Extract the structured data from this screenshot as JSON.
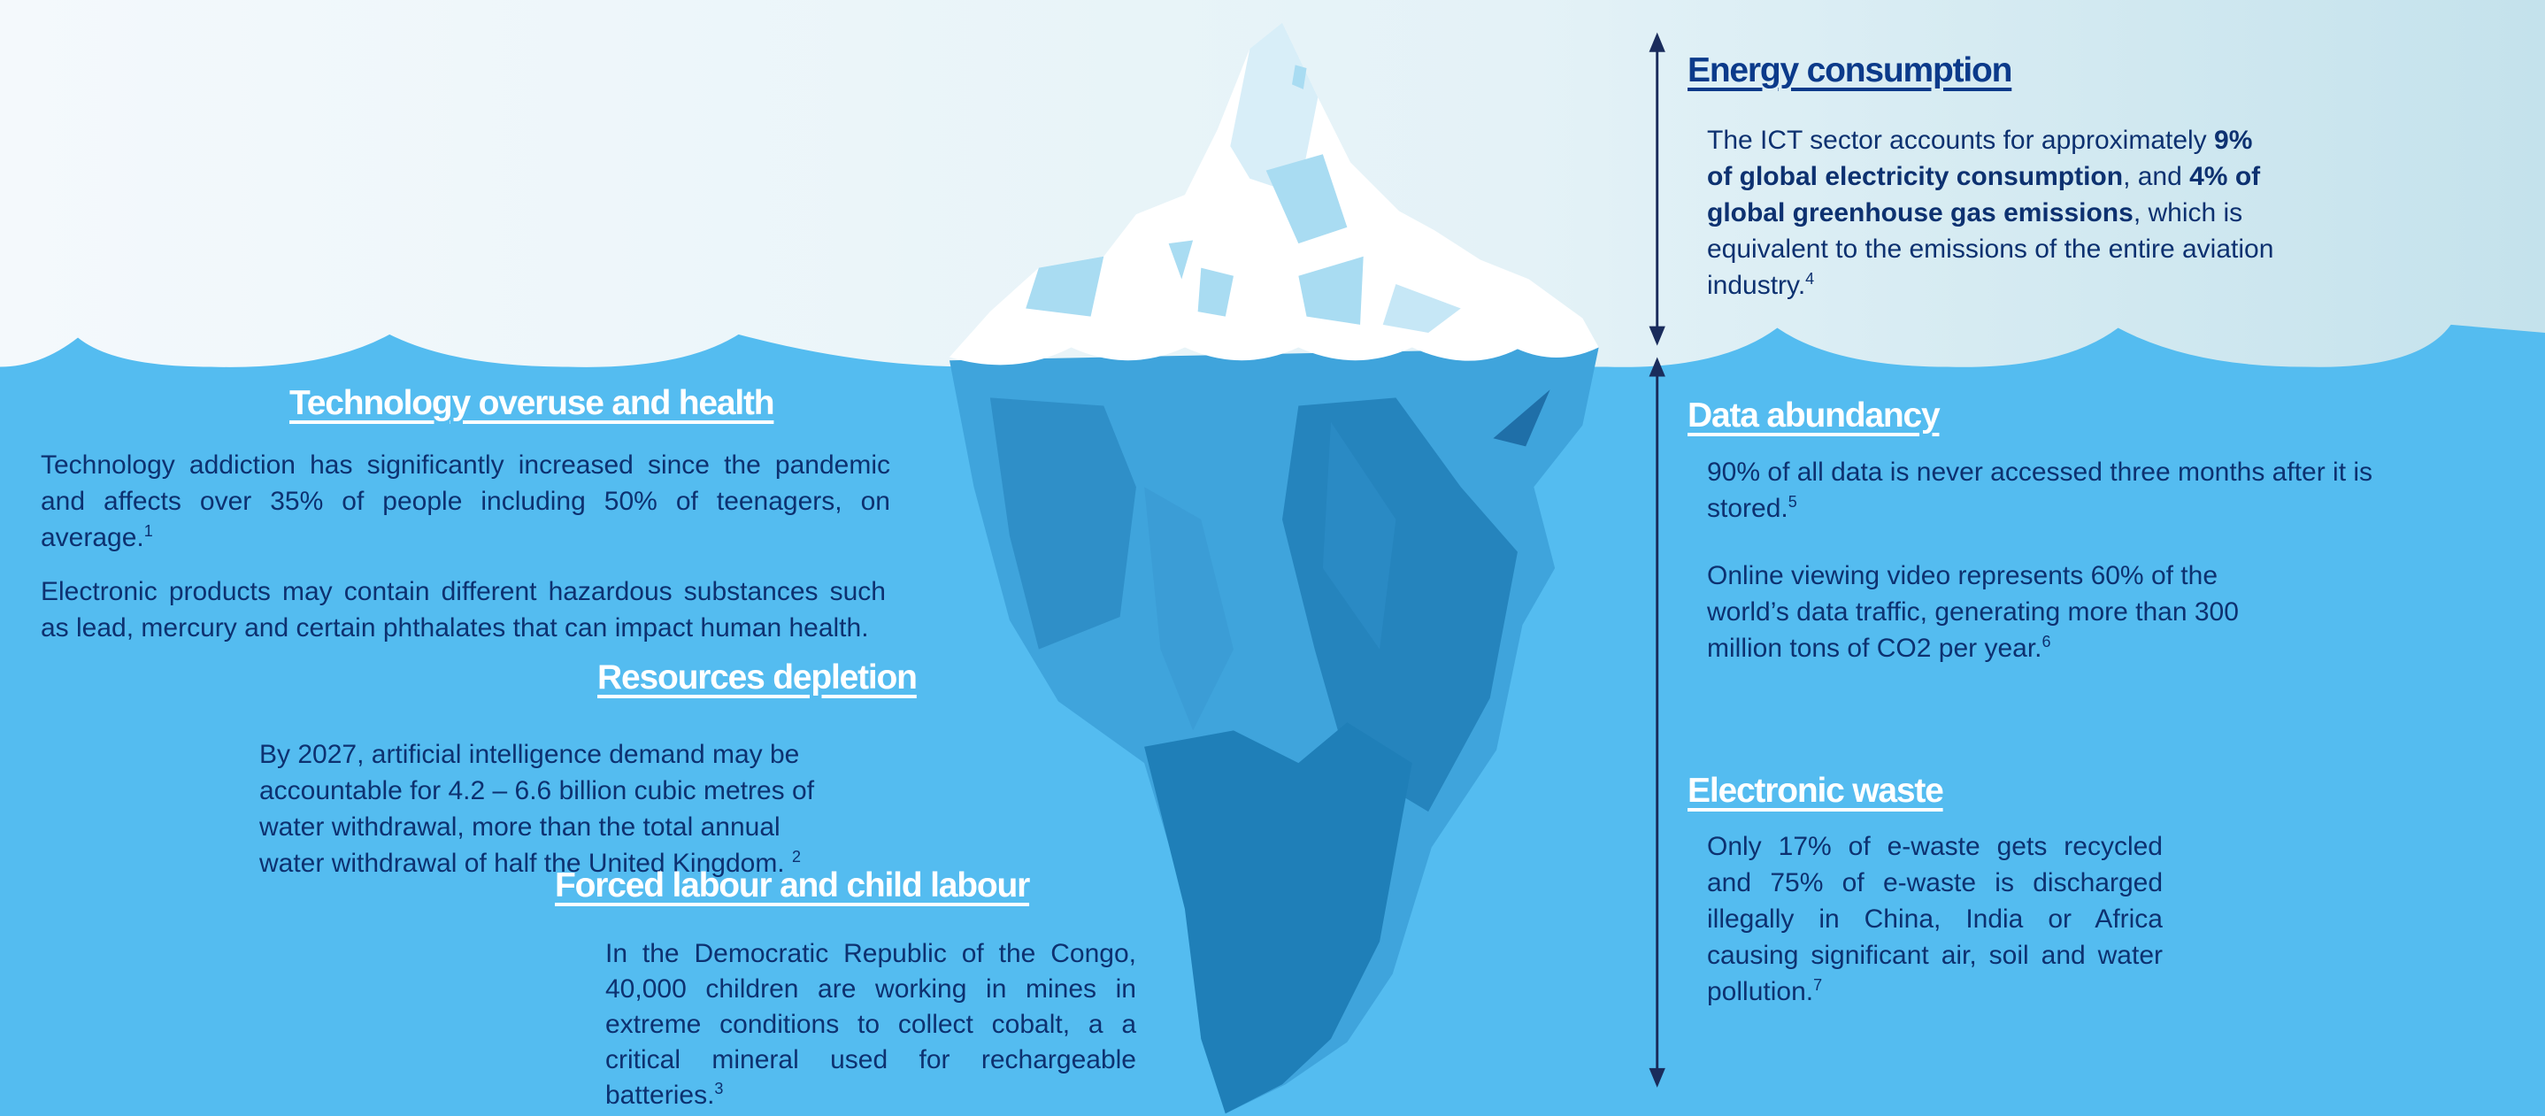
{
  "colors": {
    "water": "#54bcf0",
    "sky_left": "#f4f9fc",
    "sky_right": "#c4e2ec",
    "text_dark": "#0d3170",
    "heading_dark": "#0b3a8a",
    "arrow": "#1a2c5c"
  },
  "left": {
    "tech": {
      "title": "Technology overuse and health",
      "p1": "Technology addiction has significantly increased since the pandemic and affects over 35% of people including 50% of teenagers, on average.",
      "p1_ref": "1",
      "p2": "Electronic products may contain different hazardous substances such as lead, mercury and certain phthalates that can impact human health."
    },
    "resources": {
      "title": "Resources depletion",
      "p1": "By 2027, artificial intelligence demand may be accountable for 4.2 – 6.6 billion cubic metres of water withdrawal, more than the total annual water withdrawal of half the United Kingdom.",
      "p1_ref": "2"
    },
    "labour": {
      "title": "Forced labour and child labour",
      "p1": "In the Democratic Republic of the Congo, 40,000 children are working in mines in extreme conditions to collect cobalt, a a critical mineral used for rechargeable batteries.",
      "p1_ref": "3"
    }
  },
  "right": {
    "energy": {
      "title": "Energy consumption",
      "t1": "The ICT sector accounts for approximately ",
      "b1": "9% of global electricity consumption",
      "t2": ", and ",
      "b2": "4% of global greenhouse gas emissions",
      "t3": ", which is equivalent to the emissions of the entire aviation industry.",
      "ref": "4"
    },
    "data": {
      "title": "Data abundancy",
      "p1": "90% of all data is never accessed three months after it is stored.",
      "p1_ref": "5",
      "p2": "Online viewing video represents 60% of the world’s data traffic, generating more than 300 million tons of CO2 per year.",
      "p2_ref": "6"
    },
    "waste": {
      "title": "Electronic waste",
      "p1": "Only 17% of e-waste gets recycled and 75% of e-waste is discharged illegally in China, India or Africa causing significant air, soil and water pollution.",
      "p1_ref": "7"
    }
  }
}
